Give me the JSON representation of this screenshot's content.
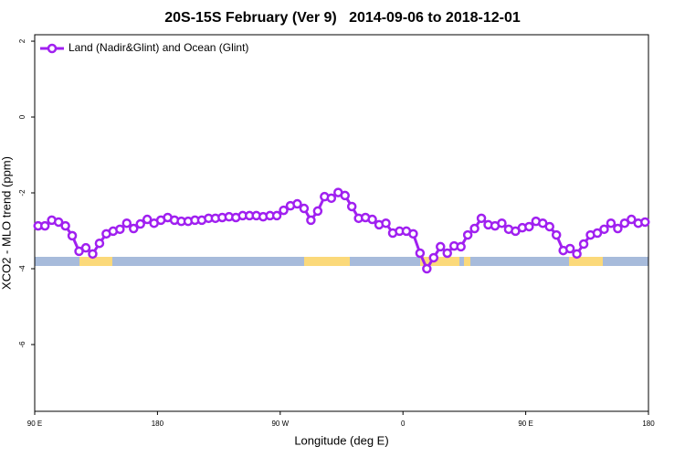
{
  "chart_data": {
    "type": "line",
    "title": "20S-15S February (Ver 9)   2014-09-06 to 2018-12-01",
    "x_label": "Longitude (deg E)",
    "y_label": "XCO2 - MLO trend (ppm)",
    "xlim": [
      90,
      540
    ],
    "ylim": [
      -7.76,
      2.17
    ],
    "xticks": [
      {
        "value": 90,
        "label": "90 E"
      },
      {
        "value": 180,
        "label": "180"
      },
      {
        "value": 270,
        "label": "90 W"
      },
      {
        "value": 360,
        "label": "0"
      },
      {
        "value": 450,
        "label": "90 E"
      },
      {
        "value": 540,
        "label": "180"
      }
    ],
    "yticks": [
      2,
      0,
      -2,
      -4,
      -6
    ],
    "legend_position": "top-left",
    "x": [
      92.5,
      97.5,
      102.5,
      107.5,
      112.5,
      117.5,
      122.5,
      127.5,
      132.5,
      137.5,
      142.5,
      147.5,
      152.5,
      157.5,
      162.5,
      167.5,
      172.5,
      177.5,
      182.5,
      187.5,
      192.5,
      197.5,
      202.5,
      207.5,
      212.5,
      217.5,
      222.5,
      227.5,
      232.5,
      237.5,
      242.5,
      247.5,
      252.5,
      257.5,
      262.5,
      267.5,
      272.5,
      277.5,
      282.5,
      287.5,
      292.5,
      297.5,
      302.5,
      307.5,
      312.5,
      317.5,
      322.5,
      327.5,
      332.5,
      337.5,
      342.5,
      347.5,
      352.5,
      357.5,
      362.5,
      367.5,
      372.5,
      377.5,
      382.5,
      387.5,
      392.5,
      397.5,
      402.5,
      407.5,
      412.5,
      417.5,
      422.5,
      427.5,
      432.5,
      437.5,
      442.5,
      447.5,
      452.5,
      457.5,
      462.5,
      467.5,
      472.5,
      477.5,
      482.5,
      487.5,
      492.5,
      497.5,
      502.5,
      507.5,
      512.5,
      517.5,
      522.5,
      527.5,
      532.5,
      537.5
    ],
    "series": [
      {
        "name": "Land (Nadir&Glint) and Ocean (Glint)",
        "color": "#a020f0",
        "values": [
          -2.87,
          -2.87,
          -2.72,
          -2.77,
          -2.87,
          -3.13,
          -3.54,
          -3.45,
          -3.61,
          -3.33,
          -3.08,
          -3.01,
          -2.96,
          -2.8,
          -2.94,
          -2.82,
          -2.7,
          -2.8,
          -2.72,
          -2.65,
          -2.72,
          -2.75,
          -2.75,
          -2.72,
          -2.72,
          -2.67,
          -2.67,
          -2.65,
          -2.63,
          -2.65,
          -2.6,
          -2.6,
          -2.6,
          -2.63,
          -2.6,
          -2.6,
          -2.46,
          -2.34,
          -2.29,
          -2.41,
          -2.72,
          -2.48,
          -2.1,
          -2.14,
          -1.99,
          -2.07,
          -2.36,
          -2.67,
          -2.65,
          -2.7,
          -2.84,
          -2.8,
          -3.06,
          -3.01,
          -3.01,
          -3.08,
          -3.59,
          -4.0,
          -3.71,
          -3.42,
          -3.59,
          -3.4,
          -3.42,
          -3.11,
          -2.94,
          -2.67,
          -2.84,
          -2.87,
          -2.8,
          -2.96,
          -3.01,
          -2.92,
          -2.89,
          -2.75,
          -2.8,
          -2.89,
          -3.11,
          -3.52,
          -3.47,
          -3.61,
          -3.35,
          -3.11,
          -3.06,
          -2.96,
          -2.8,
          -2.94,
          -2.8,
          -2.7,
          -2.8,
          -2.77
        ]
      }
    ]
  }
}
